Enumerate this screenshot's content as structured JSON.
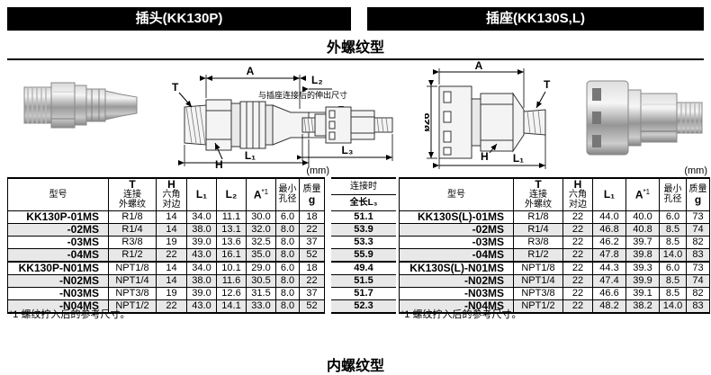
{
  "page": {
    "header_left": "插头(KK130P)",
    "header_right": "插座(KK130S,L)",
    "section_title": "外螺纹型",
    "bottom_section_title": "内螺纹型",
    "unit_mm": "(mm)"
  },
  "drawings": {
    "plug": {
      "dim_A": "A",
      "dim_T": "T",
      "dim_L2": "L₂",
      "note": "与插座连接后的伸出尺寸",
      "dia": "ø13",
      "dim_H": "H",
      "dim_L1": "L₁"
    },
    "assembly": {
      "dim_L3": "L₃"
    },
    "socket": {
      "dim_A": "A",
      "dim_T": "T",
      "dim_H": "H",
      "dim_L1": "L₁",
      "dia": "ø26"
    }
  },
  "plug_table": {
    "headers": {
      "model": "型号",
      "t_line1": "T",
      "t_line2": "连接",
      "t_line3": "外螺纹",
      "h_line1": "H",
      "h_line2": "六角",
      "h_line3": "对边",
      "l1": "L₁",
      "l2": "L₂",
      "a": "A",
      "a_sup": "*1",
      "bore_line1": "最小",
      "bore_line2": "孔径",
      "mass_line1": "质量",
      "mass_line2": "g"
    },
    "rows": [
      [
        "KK130P-01MS",
        "R1/8",
        "14",
        "34.0",
        "11.1",
        "30.0",
        "6.0",
        "18"
      ],
      [
        "-02MS",
        "R1/4",
        "14",
        "38.0",
        "13.1",
        "32.0",
        "8.0",
        "22"
      ],
      [
        "-03MS",
        "R3/8",
        "19",
        "39.0",
        "13.6",
        "32.5",
        "8.0",
        "37"
      ],
      [
        "-04MS",
        "R1/2",
        "22",
        "43.0",
        "16.1",
        "35.0",
        "8.0",
        "52"
      ],
      [
        "KK130P-N01MS",
        "NPT1/8",
        "14",
        "34.0",
        "10.1",
        "29.0",
        "6.0",
        "18"
      ],
      [
        "-N02MS",
        "NPT1/4",
        "14",
        "38.0",
        "11.6",
        "30.5",
        "8.0",
        "22"
      ],
      [
        "-N03MS",
        "NPT3/8",
        "19",
        "39.0",
        "12.6",
        "31.5",
        "8.0",
        "37"
      ],
      [
        "-N04MS",
        "NPT1/2",
        "22",
        "43.0",
        "14.1",
        "33.0",
        "8.0",
        "52"
      ]
    ],
    "footnote": "*1 螺纹拧入后的参考尺寸。"
  },
  "l3_table": {
    "header_line1": "连接时",
    "header_line2": "全长L₃",
    "values": [
      "51.1",
      "53.9",
      "53.3",
      "55.9",
      "49.4",
      "51.5",
      "51.7",
      "52.3"
    ]
  },
  "socket_table": {
    "headers": {
      "model": "型号",
      "t_line1": "T",
      "t_line2": "连接",
      "t_line3": "外螺纹",
      "h_line1": "H",
      "h_line2": "六角",
      "h_line3": "对边",
      "l1": "L₁",
      "a": "A",
      "a_sup": "*1",
      "bore_line1": "最小",
      "bore_line2": "孔径",
      "mass_line1": "质量",
      "mass_line2": "g"
    },
    "rows": [
      [
        "KK130S(L)-01MS",
        "R1/8",
        "22",
        "44.0",
        "40.0",
        "6.0",
        "73"
      ],
      [
        "-02MS",
        "R1/4",
        "22",
        "46.8",
        "40.8",
        "8.5",
        "74"
      ],
      [
        "-03MS",
        "R3/8",
        "22",
        "46.2",
        "39.7",
        "8.5",
        "82"
      ],
      [
        "-04MS",
        "R1/2",
        "22",
        "47.8",
        "39.8",
        "14.0",
        "83"
      ],
      [
        "KK130S(L)-N01MS",
        "NPT1/8",
        "22",
        "44.3",
        "39.3",
        "6.0",
        "73"
      ],
      [
        "-N02MS",
        "NPT1/4",
        "22",
        "47.4",
        "39.9",
        "8.5",
        "74"
      ],
      [
        "-N03MS",
        "NPT3/8",
        "22",
        "46.6",
        "39.1",
        "8.5",
        "82"
      ],
      [
        "-N04MS",
        "NPT1/2",
        "22",
        "48.2",
        "38.2",
        "14.0",
        "83"
      ]
    ],
    "footnote": "*1 螺纹拧入后的参考尺寸。"
  }
}
